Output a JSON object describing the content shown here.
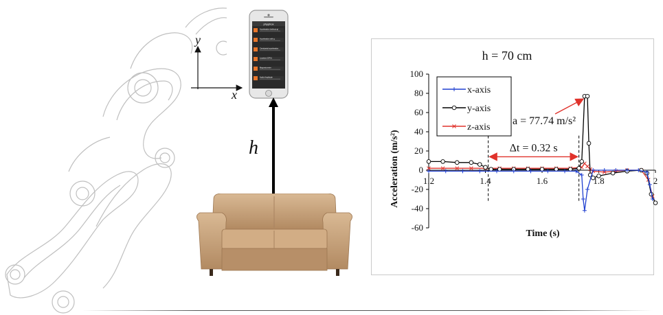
{
  "figure": {
    "axis_labels": {
      "x": "x",
      "y": "y"
    },
    "height_label": "h"
  },
  "phone": {
    "header": "phyphox",
    "menu_items": [
      "Acceleration (without g)",
      "Acceleration with g",
      "Centripetal acceleration",
      "Location (GPS)",
      "Magnetometer",
      "Audio Amplitude"
    ]
  },
  "colors": {
    "x_series": "#1f3fd0",
    "y_series": "#000000",
    "z_series": "#e0322b",
    "annotation": "#e0322b",
    "phone_accent": "#e8752a",
    "sofa": "#c9a27b"
  },
  "chart_data": {
    "type": "line",
    "title": "h = 70 cm",
    "xlabel": "Time (s)",
    "ylabel": "Acceleration (m/s²)",
    "xlim": [
      1.2,
      2.0
    ],
    "ylim": [
      -60,
      100
    ],
    "x_ticks": [
      "1.2",
      "1.4",
      "1.6",
      "1.8",
      "2"
    ],
    "y_ticks": [
      "100",
      "80",
      "60",
      "40",
      "20",
      "0",
      "-20",
      "-40",
      "-60"
    ],
    "legend": [
      "x-axis",
      "y-axis",
      "z-axis"
    ],
    "legend_position": "top-left",
    "series": [
      {
        "name": "x-axis",
        "marker": "+",
        "x": [
          1.2,
          1.26,
          1.32,
          1.38,
          1.44,
          1.5,
          1.56,
          1.62,
          1.68,
          1.72,
          1.74,
          1.745,
          1.75,
          1.76,
          1.78,
          1.82,
          1.86,
          1.9,
          1.94,
          1.97,
          1.98,
          1.99
        ],
        "y": [
          -1,
          -1,
          -1,
          -1,
          -1,
          -1,
          -1,
          -1,
          -1,
          -1,
          -5,
          -30,
          -42,
          -20,
          0,
          0,
          0,
          0,
          0,
          -2,
          -15,
          -30
        ]
      },
      {
        "name": "y-axis",
        "marker": "o",
        "x": [
          1.2,
          1.25,
          1.3,
          1.35,
          1.38,
          1.4,
          1.42,
          1.45,
          1.5,
          1.55,
          1.6,
          1.65,
          1.7,
          1.73,
          1.74,
          1.75,
          1.76,
          1.765,
          1.77,
          1.78,
          1.8,
          1.85,
          1.9,
          1.95,
          1.97,
          1.985,
          2.0
        ],
        "y": [
          9,
          9,
          8,
          8,
          6,
          3,
          1,
          1,
          1,
          1,
          1,
          1,
          1,
          2,
          9,
          77,
          77,
          28,
          -5,
          -8,
          -6,
          -3,
          -1,
          0,
          -3,
          -25,
          -34
        ]
      },
      {
        "name": "z-axis",
        "marker": "x",
        "x": [
          1.2,
          1.25,
          1.3,
          1.35,
          1.4,
          1.45,
          1.5,
          1.55,
          1.6,
          1.65,
          1.7,
          1.74,
          1.75,
          1.76,
          1.77,
          1.78,
          1.82,
          1.86,
          1.9,
          1.95,
          1.975,
          1.99
        ],
        "y": [
          2,
          2,
          2,
          2,
          2,
          2,
          2,
          2,
          2,
          2,
          2,
          3,
          7,
          4,
          1,
          -1,
          -2,
          -1,
          0,
          0,
          -10,
          -27
        ]
      }
    ],
    "annotations": [
      {
        "text": "a = 77.74 m/s²"
      },
      {
        "text": "Δt = 0.32 s"
      }
    ],
    "markers_x": [
      1.41,
      1.73
    ]
  }
}
